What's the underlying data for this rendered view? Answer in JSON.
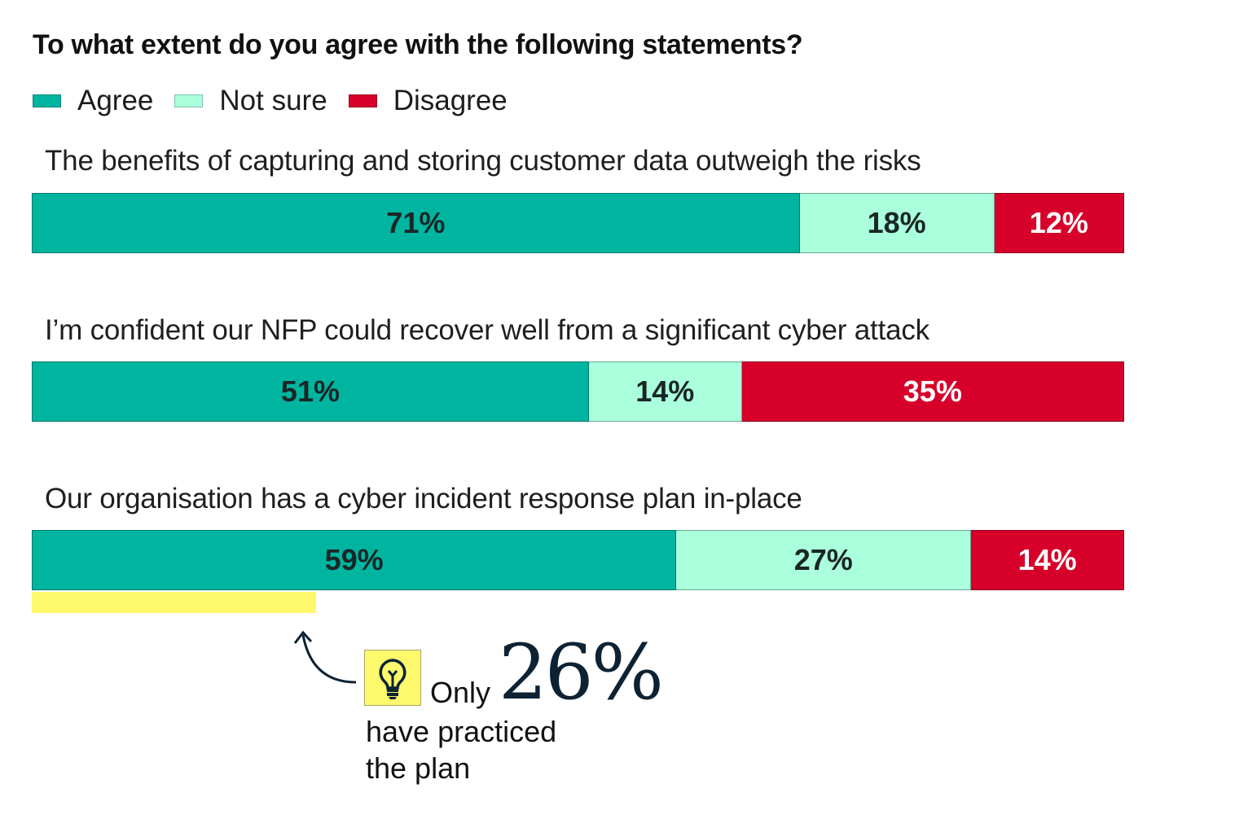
{
  "chart_data": {
    "type": "bar",
    "orientation": "horizontal-stacked-100",
    "title": "To what extent do you agree with the following statements?",
    "legend": [
      "Agree",
      "Not sure",
      "Disagree"
    ],
    "legend_position": "top-left",
    "colors": {
      "Agree": "#00b5a0",
      "Not sure": "#aaffdc",
      "Disagree": "#d6002a"
    },
    "label_colors": {
      "Agree": "#1a2626",
      "Not sure": "#1a2626",
      "Disagree": "#ffffff"
    },
    "categories": [
      "The benefits of capturing and storing customer data outweigh the risks",
      "I’m confident our NFP could recover well from a significant cyber attack",
      "Our organisation has a cyber incident response plan in-place"
    ],
    "series": [
      {
        "name": "Agree",
        "values": [
          71,
          51,
          59
        ],
        "labels": [
          "71%",
          "51%",
          "59%"
        ]
      },
      {
        "name": "Not sure",
        "values": [
          18,
          14,
          27
        ],
        "labels": [
          "18%",
          "14%",
          "27%"
        ]
      },
      {
        "name": "Disagree",
        "values": [
          12,
          35,
          14
        ],
        "labels": [
          "12%",
          "35%",
          "14%"
        ]
      }
    ],
    "grid": false
  },
  "callout": {
    "value": 26,
    "highlight_color": "#fdf86c",
    "icon": "lightbulb-icon",
    "prefix": "Only",
    "big_text": "26%",
    "line1": "have practiced",
    "line2": "the plan"
  }
}
